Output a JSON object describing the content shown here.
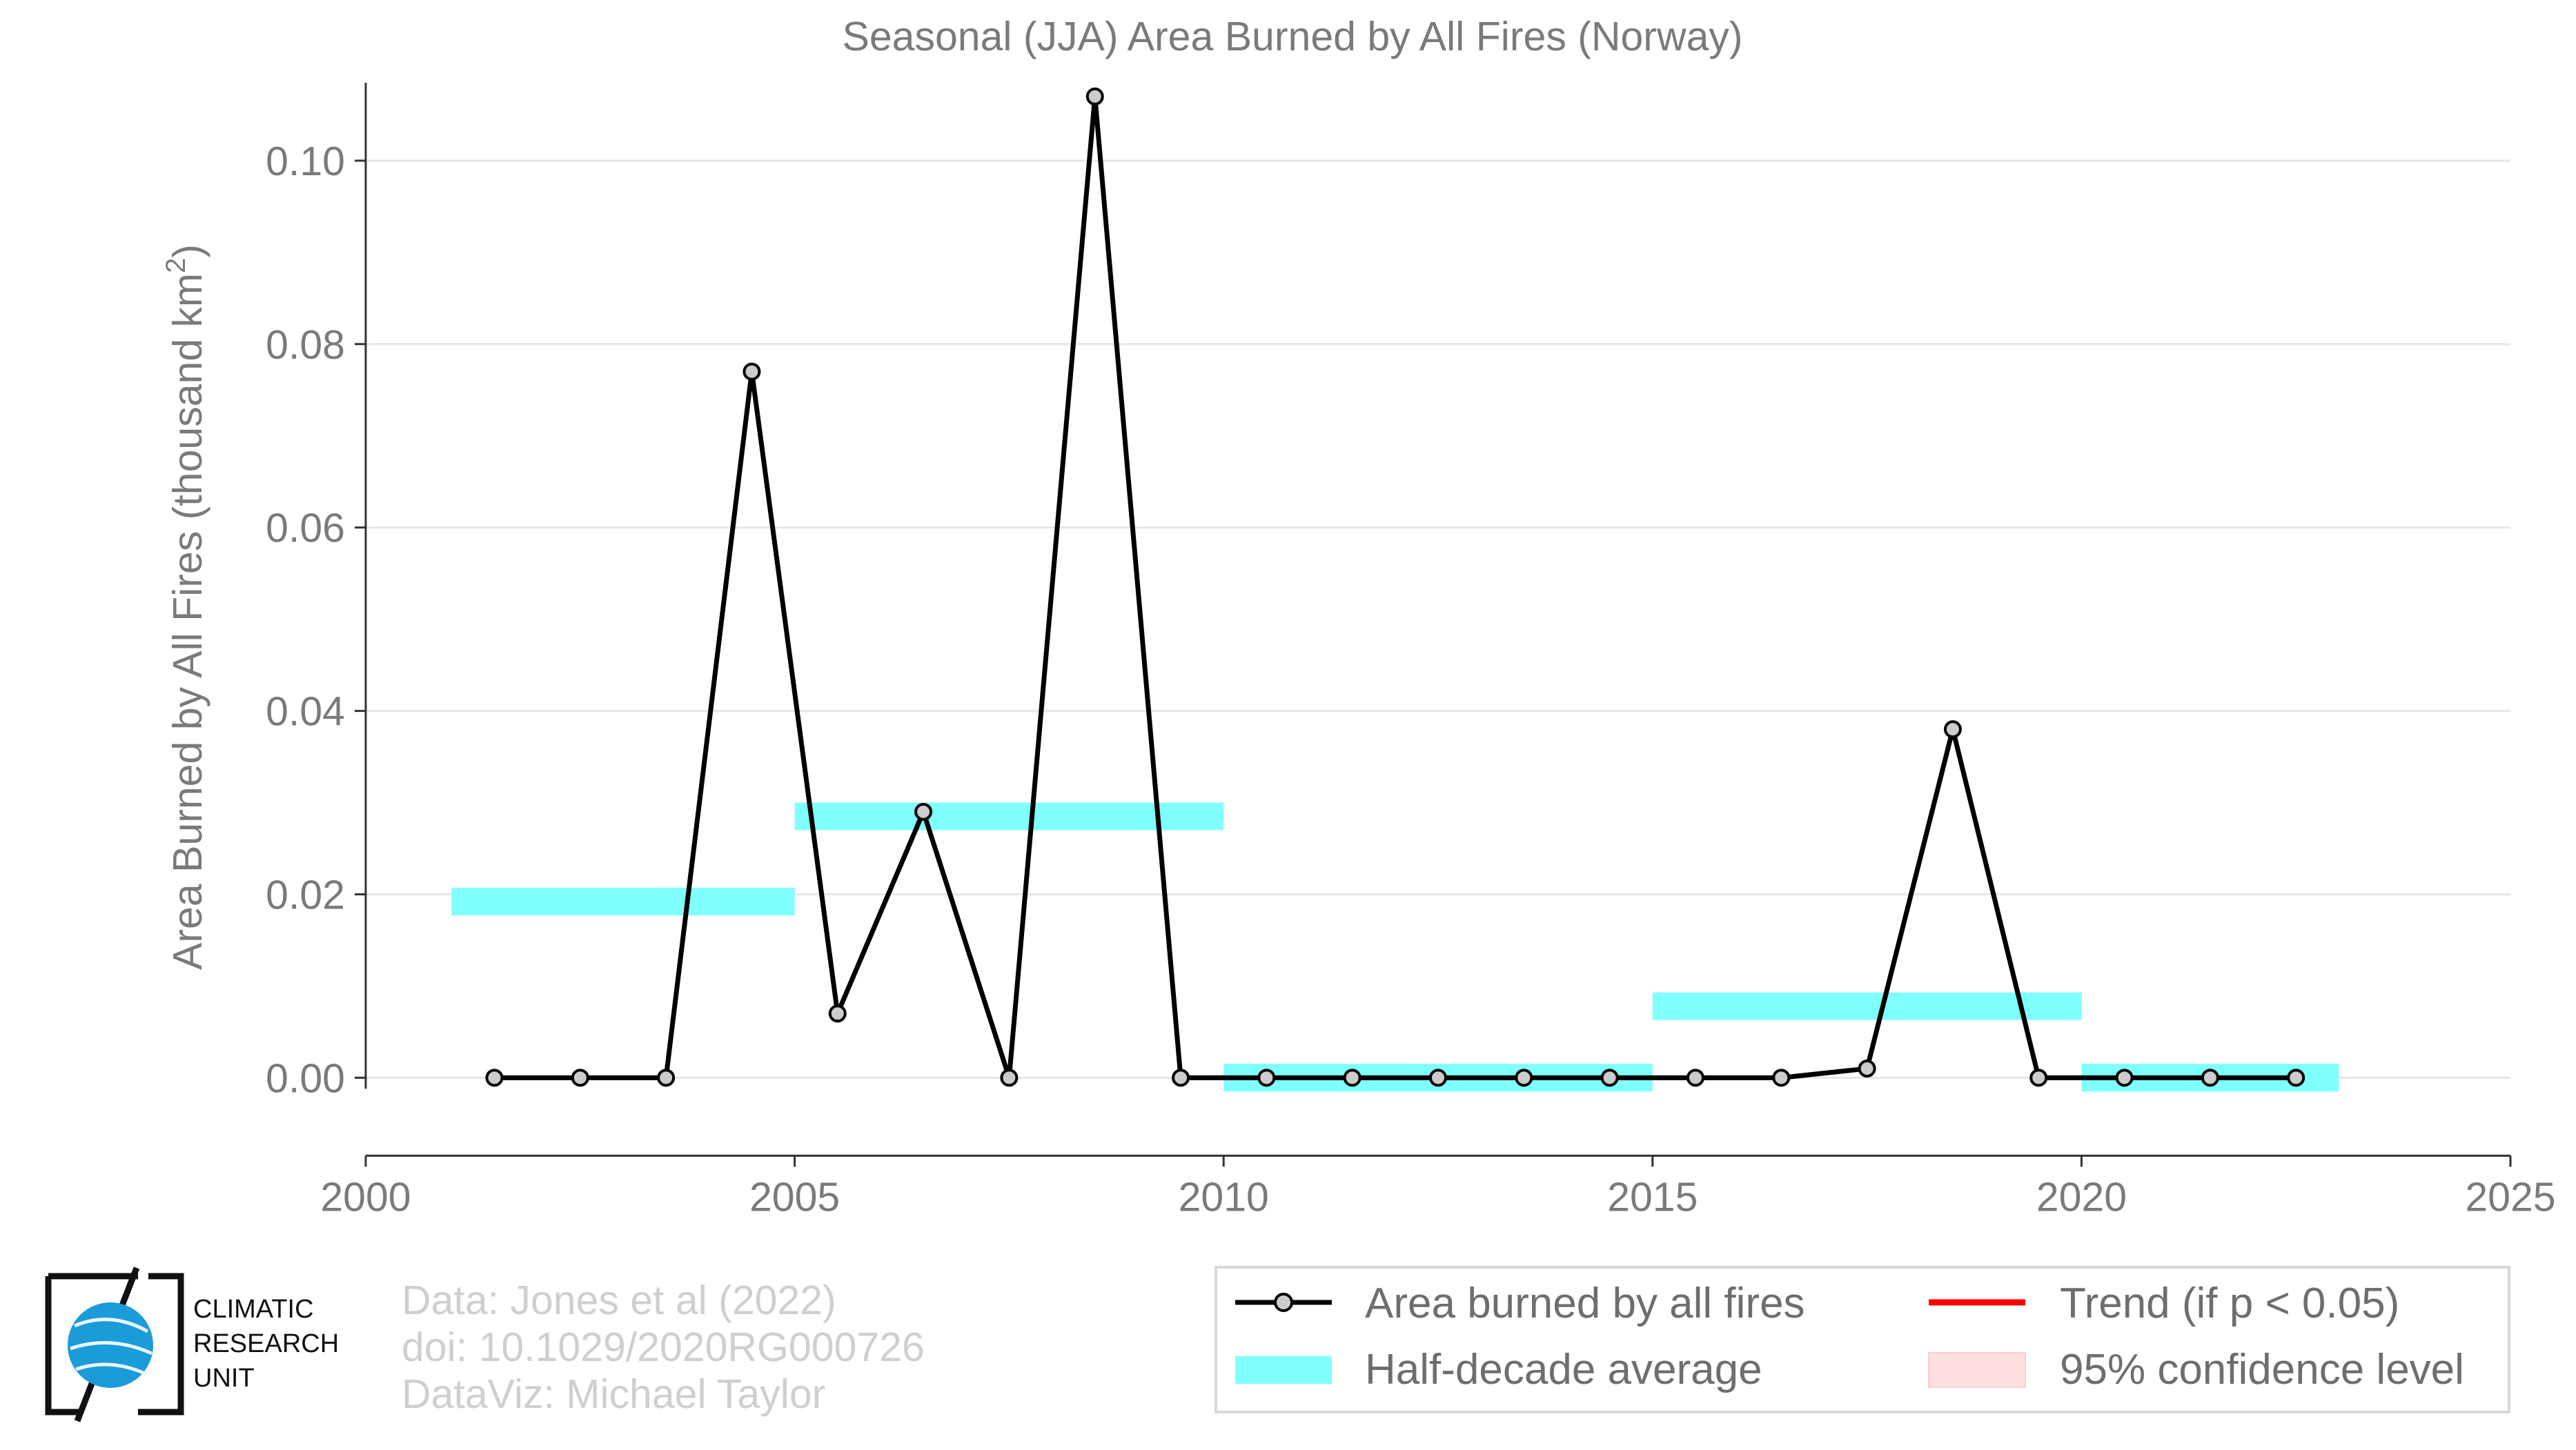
{
  "chart_data": {
    "type": "line",
    "title": "Seasonal (JJA) Area Burned by All Fires (Norway)",
    "ylabel": "Area Burned by All Fires (thousand km²)",
    "xlabel": "",
    "xlim": [
      2000,
      2025
    ],
    "ylim": [
      -0.009,
      0.11
    ],
    "xticks": [
      "2000",
      "2005",
      "2010",
      "2015",
      "2020",
      "2025"
    ],
    "yticks": [
      "0.00",
      "0.02",
      "0.04",
      "0.06",
      "0.08",
      "0.10"
    ],
    "grid": "horizontal",
    "series": [
      {
        "name": "Area burned by all fires",
        "color": "#000000",
        "x": [
          2001.5,
          2002.5,
          2003.5,
          2004.5,
          2005.5,
          2006.5,
          2007.5,
          2008.5,
          2009.5,
          2010.5,
          2011.5,
          2012.5,
          2013.5,
          2014.5,
          2015.5,
          2016.5,
          2017.5,
          2018.5,
          2019.5,
          2020.5,
          2021.5,
          2022.5
        ],
        "values": [
          0.0,
          0.0,
          0.0,
          0.077,
          0.007,
          0.029,
          0.0,
          0.107,
          0.0,
          0.0,
          0.0,
          0.0,
          0.0,
          0.0,
          0.0,
          0.0,
          0.001,
          0.038,
          0.0,
          0.0,
          0.0,
          0.0
        ]
      }
    ],
    "half_decade_average": {
      "name": "Half-decade average",
      "color": "#80ffff",
      "segments": [
        {
          "x_start": 2001,
          "x_end": 2005,
          "value": 0.0192
        },
        {
          "x_start": 2005,
          "x_end": 2010,
          "value": 0.0285
        },
        {
          "x_start": 2010,
          "x_end": 2015,
          "value": 0.0
        },
        {
          "x_start": 2015,
          "x_end": 2020,
          "value": 0.0078
        },
        {
          "x_start": 2020,
          "x_end": 2023,
          "value": 0.0
        }
      ]
    },
    "legend": {
      "placement": "bottom-right",
      "entries": [
        {
          "label": "Area burned by all fires",
          "kind": "line-marker",
          "color": "#000000"
        },
        {
          "label": "Trend (if p < 0.05)",
          "kind": "line",
          "color": "#ff0000"
        },
        {
          "label": "Half-decade average",
          "kind": "band",
          "color": "#80ffff"
        },
        {
          "label": "95% confidence level",
          "kind": "patch",
          "color": "#ffe0e0"
        }
      ]
    }
  },
  "credits": {
    "line1": "Data: Jones et al (2022)",
    "line2": "doi: 10.1029/2020RG000726",
    "line3": "DataViz: Michael Taylor"
  },
  "logo": {
    "line1": "CLIMATIC",
    "line2": "RESEARCH",
    "line3": "UNIT"
  }
}
